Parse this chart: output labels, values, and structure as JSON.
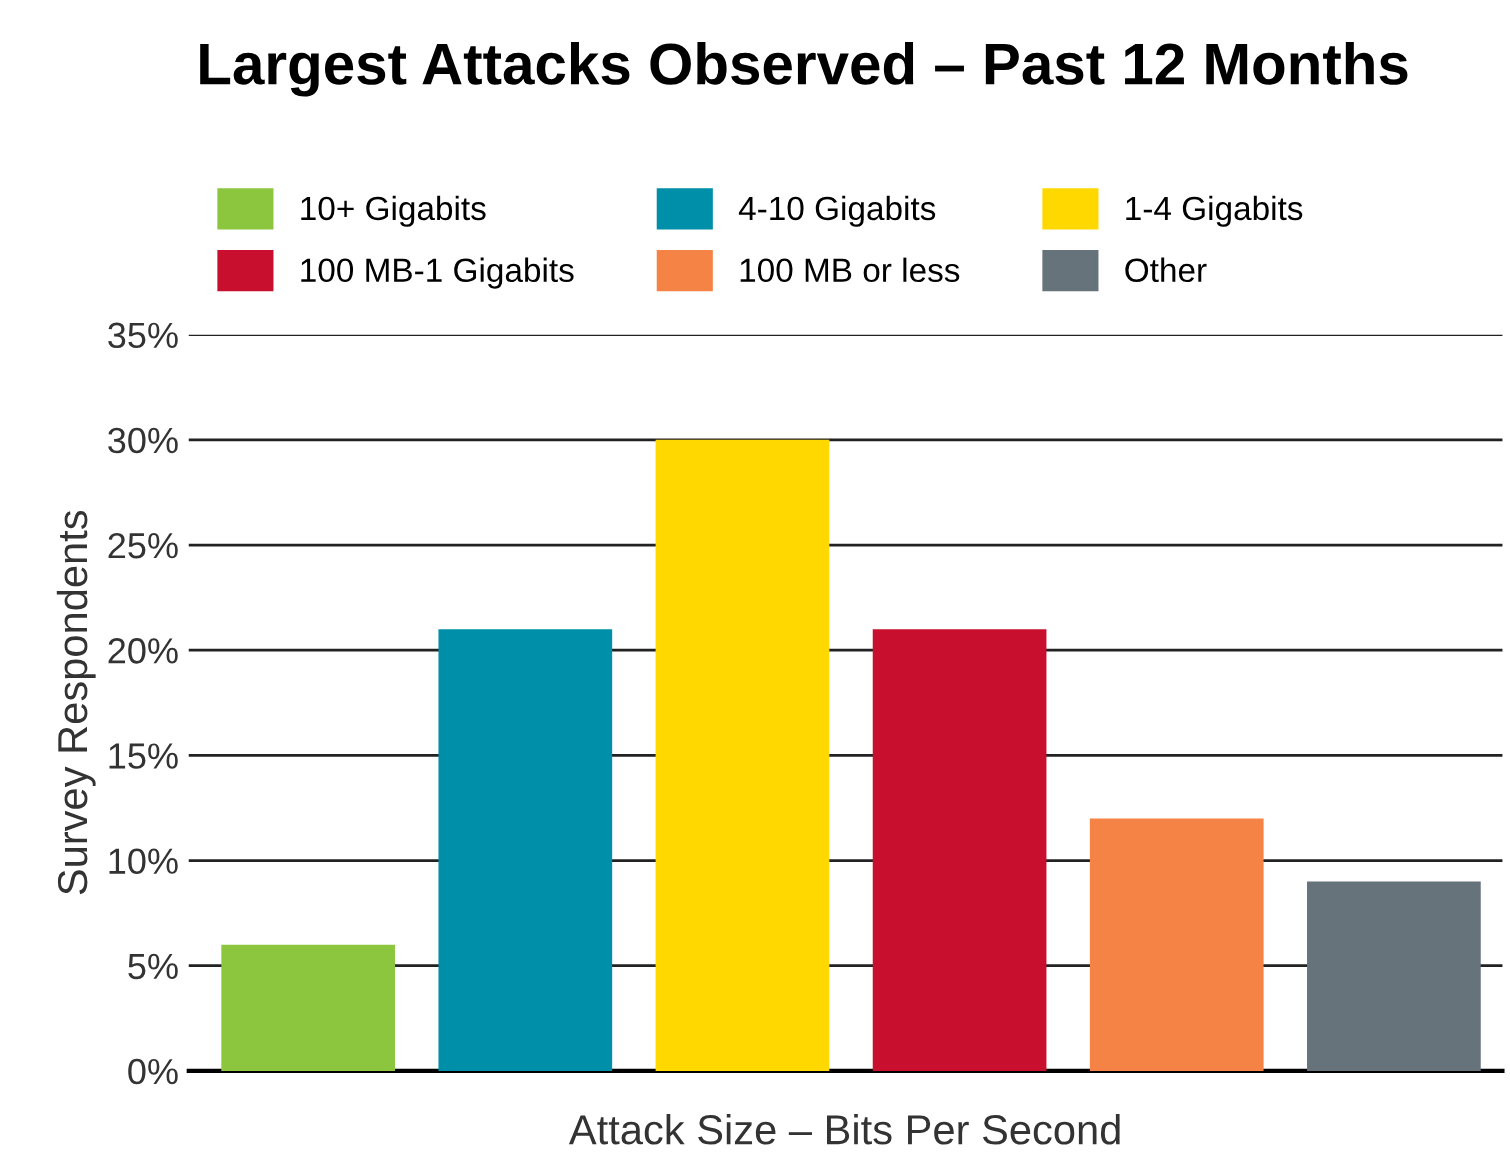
{
  "chart_data": {
    "type": "bar",
    "title": "Largest Attacks Observed – Past 12 Months",
    "xlabel": "Attack Size – Bits Per Second",
    "ylabel": "Survey Respondents",
    "categories": [
      null,
      null,
      null,
      null,
      null,
      null
    ],
    "series": [
      {
        "name": "10+ Gigabits",
        "color": "#8cc63f",
        "values": [
          6,
          null,
          null,
          null,
          null,
          null
        ]
      },
      {
        "name": "4-10 Gigabits",
        "color": "#008fa8",
        "values": [
          null,
          21,
          null,
          null,
          null,
          null
        ]
      },
      {
        "name": "1-4 Gigabits",
        "color": "#ffd800",
        "values": [
          null,
          null,
          30,
          null,
          null,
          null
        ]
      },
      {
        "name": "100 MB-1 Gigabits",
        "color": "#c8102e",
        "values": [
          null,
          null,
          null,
          21,
          null,
          null
        ]
      },
      {
        "name": "100 MB or less",
        "color": "#f58345",
        "values": [
          null,
          null,
          null,
          null,
          12,
          null
        ]
      },
      {
        "name": "Other",
        "color": "#67737a",
        "values": [
          null,
          null,
          null,
          null,
          null,
          9
        ]
      }
    ],
    "ylim": [
      0,
      35
    ],
    "yticks": [
      {
        "value": 0,
        "label": "0%"
      },
      {
        "value": 5,
        "label": "5%"
      },
      {
        "value": 10,
        "label": "10%"
      },
      {
        "value": 15,
        "label": "15%"
      },
      {
        "value": 20,
        "label": "20%"
      },
      {
        "value": 25,
        "label": "25%"
      },
      {
        "value": 30,
        "label": "30%"
      },
      {
        "value": 35,
        "label": "35%"
      }
    ],
    "grid": "y",
    "legend": "top"
  }
}
